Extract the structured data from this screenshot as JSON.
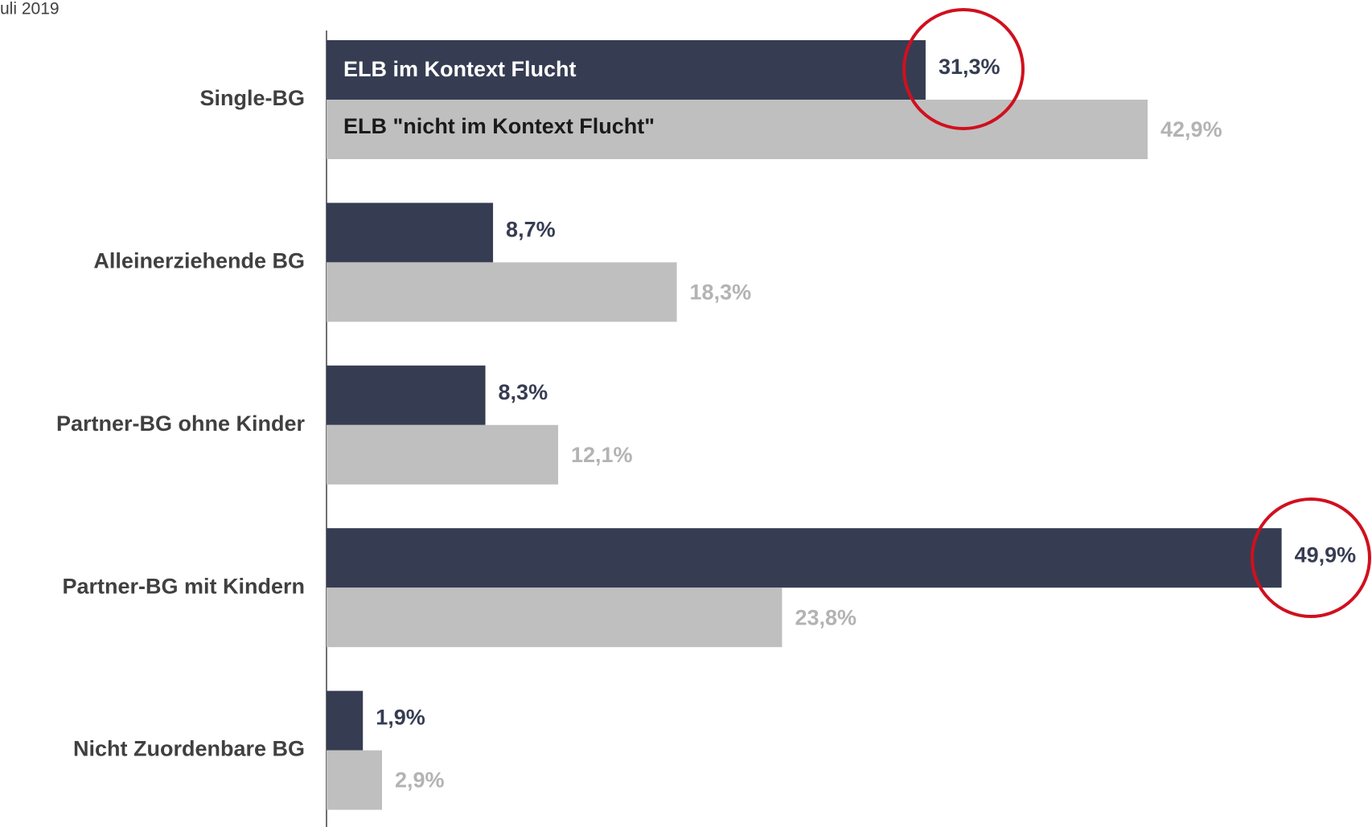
{
  "chart_data": {
    "type": "hbar",
    "subtitle": "uli 2019",
    "categories": [
      "Single-BG",
      "Alleinerziehende BG",
      "Partner-BG ohne Kinder",
      "Partner-BG mit Kindern",
      "Nicht Zuordenbare BG"
    ],
    "series": [
      {
        "name": "ELB im Kontext Flucht",
        "color": "#363d52",
        "label_color": "#363d52",
        "values": [
          31.3,
          8.7,
          8.3,
          49.9,
          1.9
        ],
        "value_labels": [
          "31,3%",
          "8,7%",
          "8,3%",
          "49,9%",
          "1,9%"
        ]
      },
      {
        "name": "ELB \"nicht im Kontext Flucht\"",
        "color": "#bfbfbf",
        "label_color": "#b3b3b3",
        "values": [
          42.9,
          18.3,
          12.1,
          23.8,
          2.9
        ],
        "value_labels": [
          "42,9%",
          "18,3%",
          "12,1%",
          "23,8%",
          "2,9%"
        ]
      }
    ],
    "xlim": [
      0,
      50
    ]
  }
}
